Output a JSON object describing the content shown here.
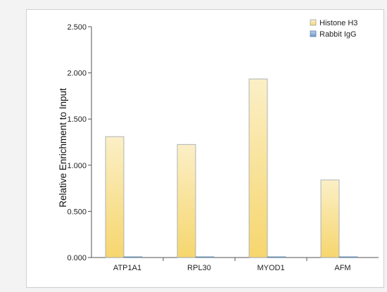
{
  "chart_data": {
    "type": "bar",
    "categories": [
      "ATP1A1",
      "RPL30",
      "MYOD1",
      "AFM"
    ],
    "series": [
      {
        "name": "Histone H3",
        "values": [
          1.31,
          1.225,
          1.935,
          0.84
        ],
        "color": "#f7d774"
      },
      {
        "name": "Rabbit IgG",
        "values": [
          0.005,
          0.005,
          0.005,
          0.005
        ],
        "color": "#7fa6d3"
      }
    ],
    "ylabel": "Relative Enrichment to Input",
    "ylim": [
      0,
      2.5
    ],
    "yticks": [
      0,
      0.5,
      1.0,
      1.5,
      2.0,
      2.5
    ],
    "ytick_labels": [
      "0.000",
      "0.500",
      "1.000",
      "1.500",
      "2.000",
      "2.500"
    ],
    "grid": false,
    "legend_position": "top-right"
  }
}
